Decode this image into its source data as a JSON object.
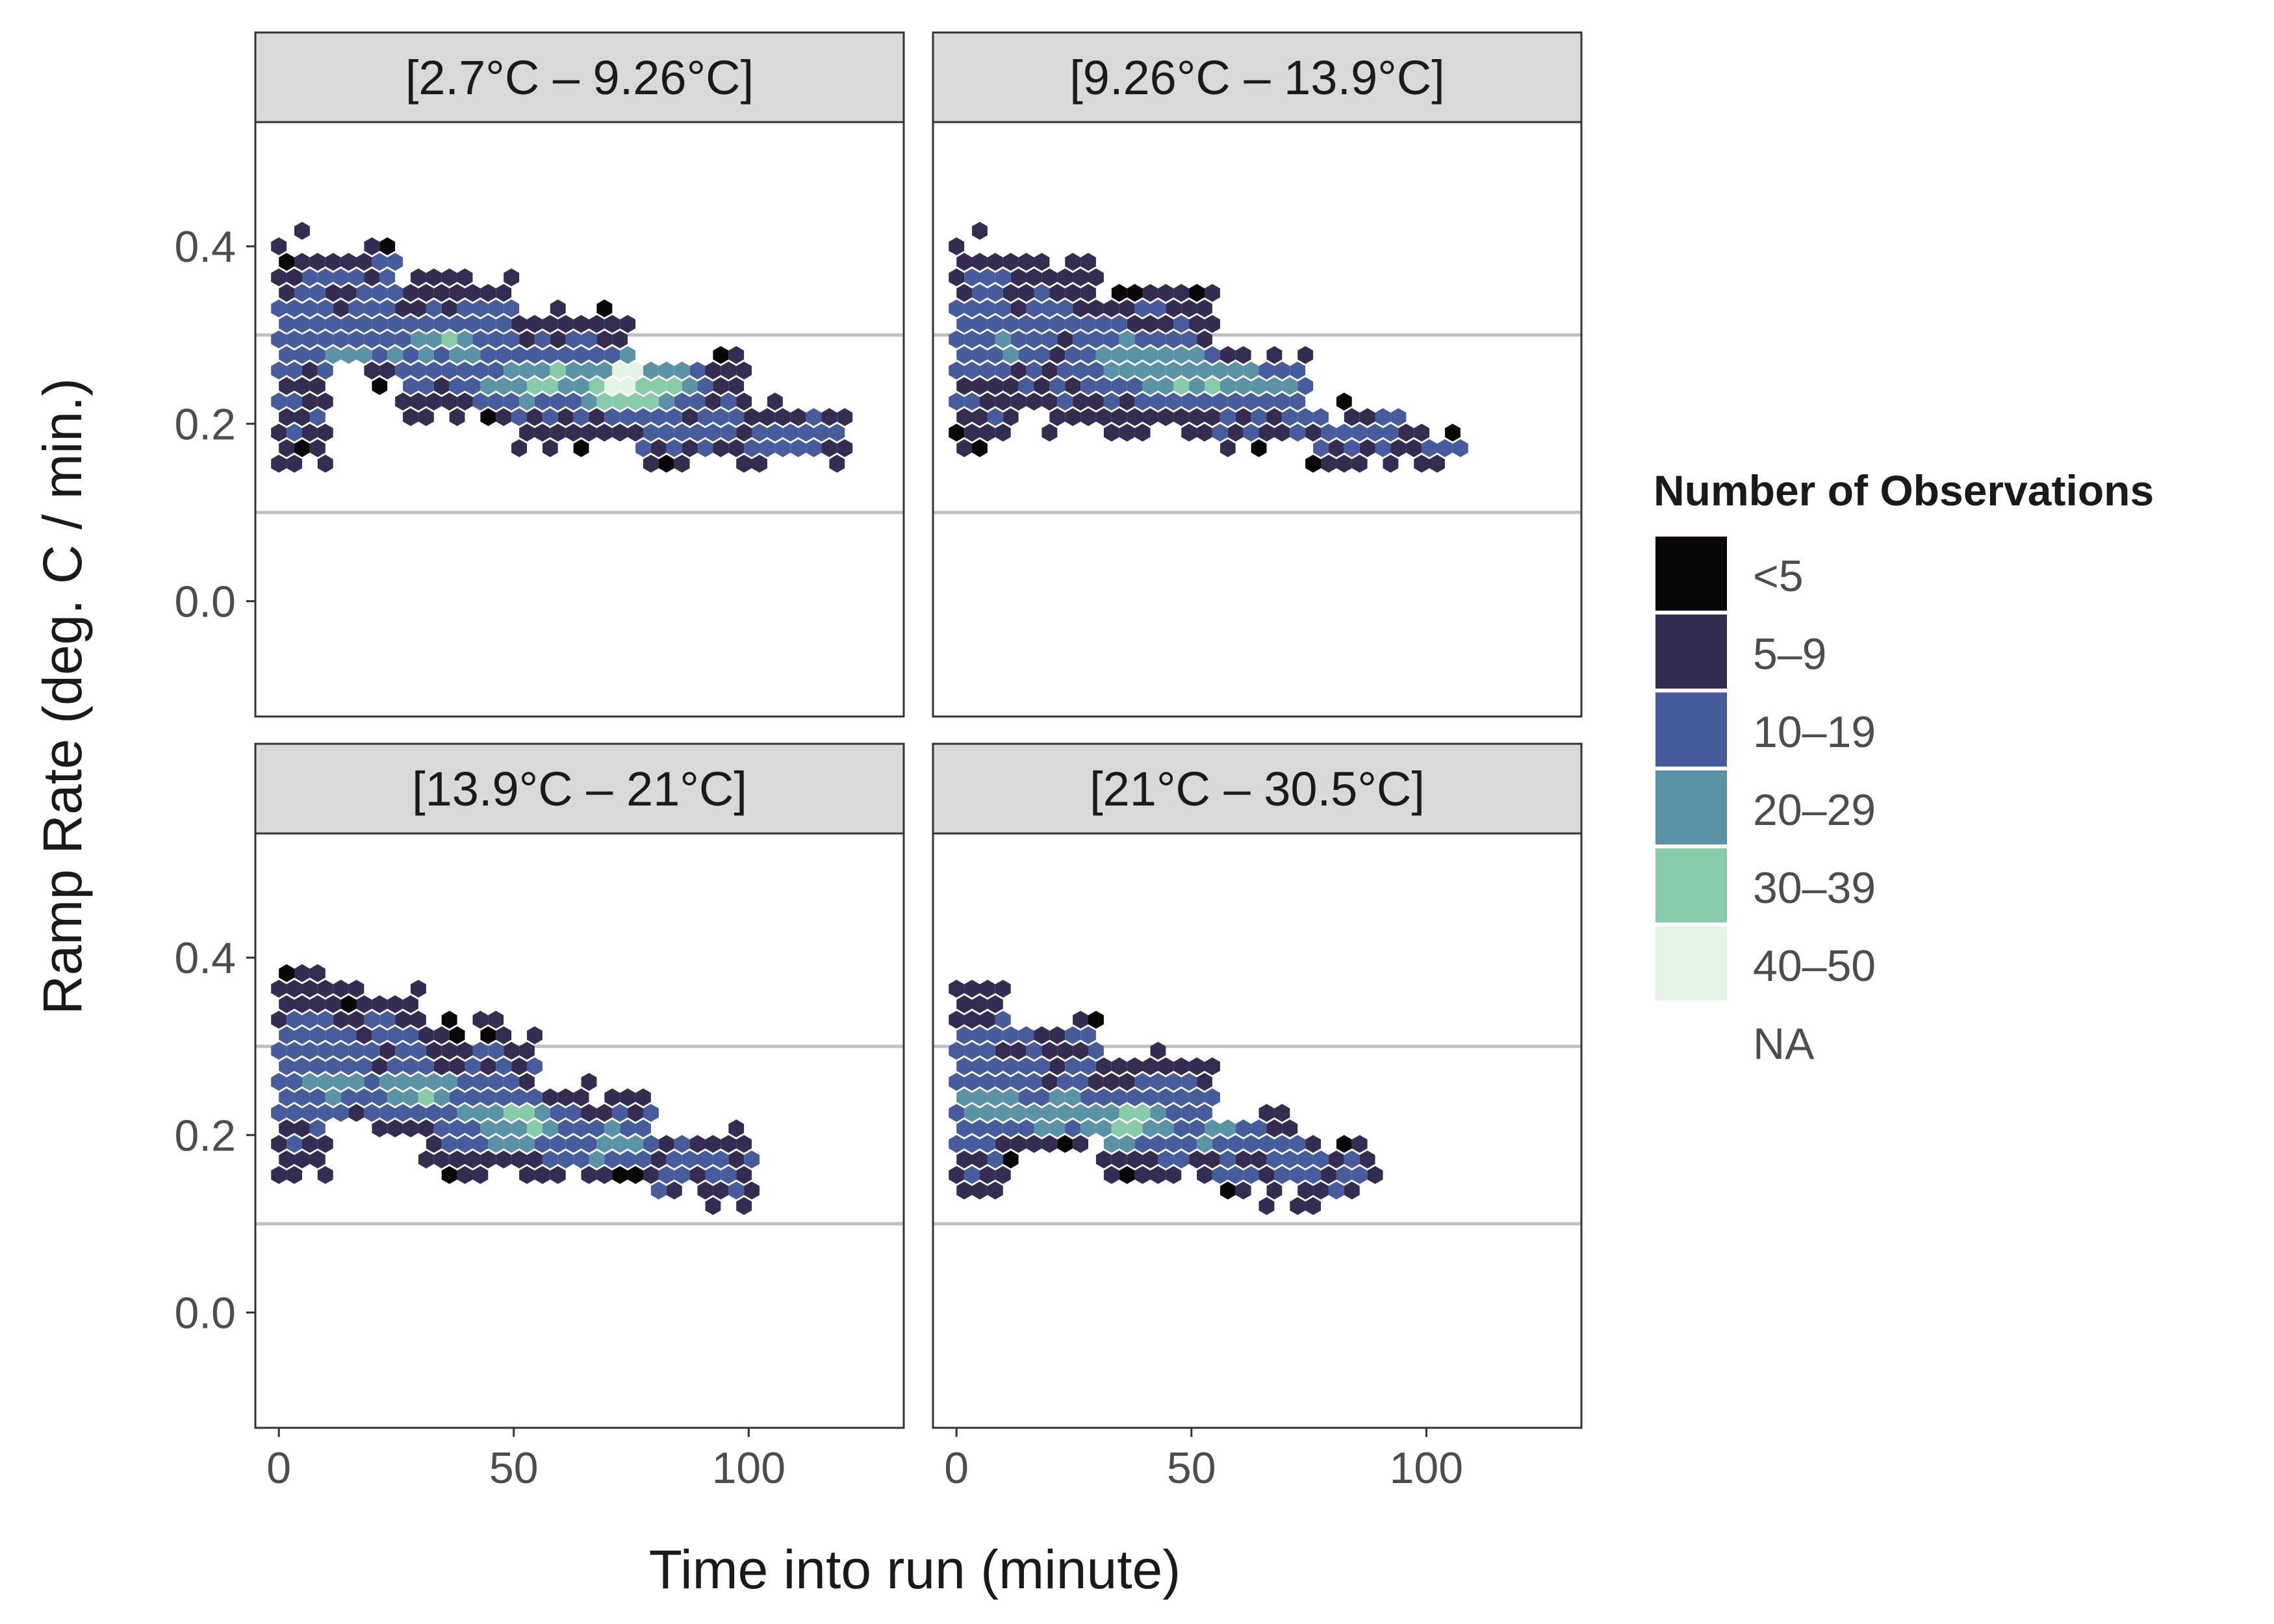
{
  "chart_data": {
    "type": "heatmap",
    "subtype": "faceted-hexbin",
    "xlabel": "Time into run (minute)",
    "ylabel": "Ramp Rate (deg. C / min.)",
    "xlim": [
      -5,
      133
    ],
    "ylim": [
      -0.13,
      0.54
    ],
    "x_ticks": [
      0,
      50,
      100
    ],
    "y_ticks": [
      0.0,
      0.2,
      0.4
    ],
    "y_tick_labels": [
      "0.0",
      "0.2",
      "0.4"
    ],
    "reference_lines_y": [
      0.1,
      0.3
    ],
    "grid": false,
    "legend": {
      "title": "Number of Observations",
      "placement": "right",
      "items": [
        {
          "label": "<5",
          "color": "#0b0708"
        },
        {
          "label": "5–9",
          "color": "#352c52"
        },
        {
          "label": "10–19",
          "color": "#475c9c"
        },
        {
          "label": "20–29",
          "color": "#5a93a6"
        },
        {
          "label": "30–39",
          "color": "#88cba8"
        },
        {
          "label": "40–50",
          "color": "#e3f4e6"
        },
        {
          "label": "NA",
          "color": ""
        }
      ]
    },
    "facets": [
      {
        "label": "[2.7°C – 9.26°C]",
        "bands": [
          {
            "x0": 0,
            "x1": 10,
            "top": 0.405,
            "bot": 0.15
          },
          {
            "x0": 10,
            "x1": 25,
            "top": 0.4,
            "bot": 0.25
          },
          {
            "x0": 25,
            "x1": 50,
            "top": 0.37,
            "bot": 0.2
          },
          {
            "x0": 50,
            "x1": 75,
            "top": 0.33,
            "bot": 0.17
          },
          {
            "x0": 75,
            "x1": 100,
            "top": 0.27,
            "bot": 0.16
          },
          {
            "x0": 100,
            "x1": 122,
            "top": 0.22,
            "bot": 0.15
          }
        ],
        "hot": [
          {
            "x": 75,
            "y": 0.245,
            "v": 46
          },
          {
            "x": 55,
            "y": 0.25,
            "v": 32
          },
          {
            "x": 35,
            "y": 0.29,
            "v": 28
          },
          {
            "x": 18,
            "y": 0.285,
            "v": 24
          }
        ]
      },
      {
        "label": "[9.26°C – 13.9°C]",
        "bands": [
          {
            "x0": 0,
            "x1": 10,
            "top": 0.405,
            "bot": 0.17
          },
          {
            "x0": 10,
            "x1": 30,
            "top": 0.38,
            "bot": 0.2
          },
          {
            "x0": 30,
            "x1": 55,
            "top": 0.35,
            "bot": 0.19
          },
          {
            "x0": 55,
            "x1": 75,
            "top": 0.28,
            "bot": 0.17
          },
          {
            "x0": 75,
            "x1": 95,
            "top": 0.22,
            "bot": 0.15
          },
          {
            "x0": 95,
            "x1": 108,
            "top": 0.19,
            "bot": 0.15
          }
        ],
        "hot": [
          {
            "x": 50,
            "y": 0.255,
            "v": 33
          },
          {
            "x": 35,
            "y": 0.275,
            "v": 27
          },
          {
            "x": 65,
            "y": 0.245,
            "v": 26
          },
          {
            "x": 10,
            "y": 0.29,
            "v": 22
          }
        ]
      },
      {
        "label": "[13.9°C – 21°C]",
        "bands": [
          {
            "x0": 0,
            "x1": 10,
            "top": 0.385,
            "bot": 0.15
          },
          {
            "x0": 10,
            "x1": 30,
            "top": 0.36,
            "bot": 0.21
          },
          {
            "x0": 30,
            "x1": 55,
            "top": 0.32,
            "bot": 0.16
          },
          {
            "x0": 55,
            "x1": 80,
            "top": 0.25,
            "bot": 0.15
          },
          {
            "x0": 80,
            "x1": 102,
            "top": 0.2,
            "bot": 0.13
          }
        ],
        "hot": [
          {
            "x": 50,
            "y": 0.215,
            "v": 34
          },
          {
            "x": 30,
            "y": 0.245,
            "v": 28
          },
          {
            "x": 12,
            "y": 0.255,
            "v": 24
          },
          {
            "x": 70,
            "y": 0.19,
            "v": 24
          }
        ]
      },
      {
        "label": "[21°C – 30.5°C]",
        "bands": [
          {
            "x0": 0,
            "x1": 10,
            "top": 0.37,
            "bot": 0.13
          },
          {
            "x0": 10,
            "x1": 30,
            "top": 0.33,
            "bot": 0.18
          },
          {
            "x0": 30,
            "x1": 55,
            "top": 0.29,
            "bot": 0.15
          },
          {
            "x0": 55,
            "x1": 75,
            "top": 0.22,
            "bot": 0.13
          },
          {
            "x0": 75,
            "x1": 90,
            "top": 0.19,
            "bot": 0.13
          }
        ],
        "hot": [
          {
            "x": 35,
            "y": 0.215,
            "v": 34
          },
          {
            "x": 20,
            "y": 0.225,
            "v": 30
          },
          {
            "x": 5,
            "y": 0.235,
            "v": 28
          },
          {
            "x": 55,
            "y": 0.205,
            "v": 22
          }
        ]
      }
    ]
  }
}
